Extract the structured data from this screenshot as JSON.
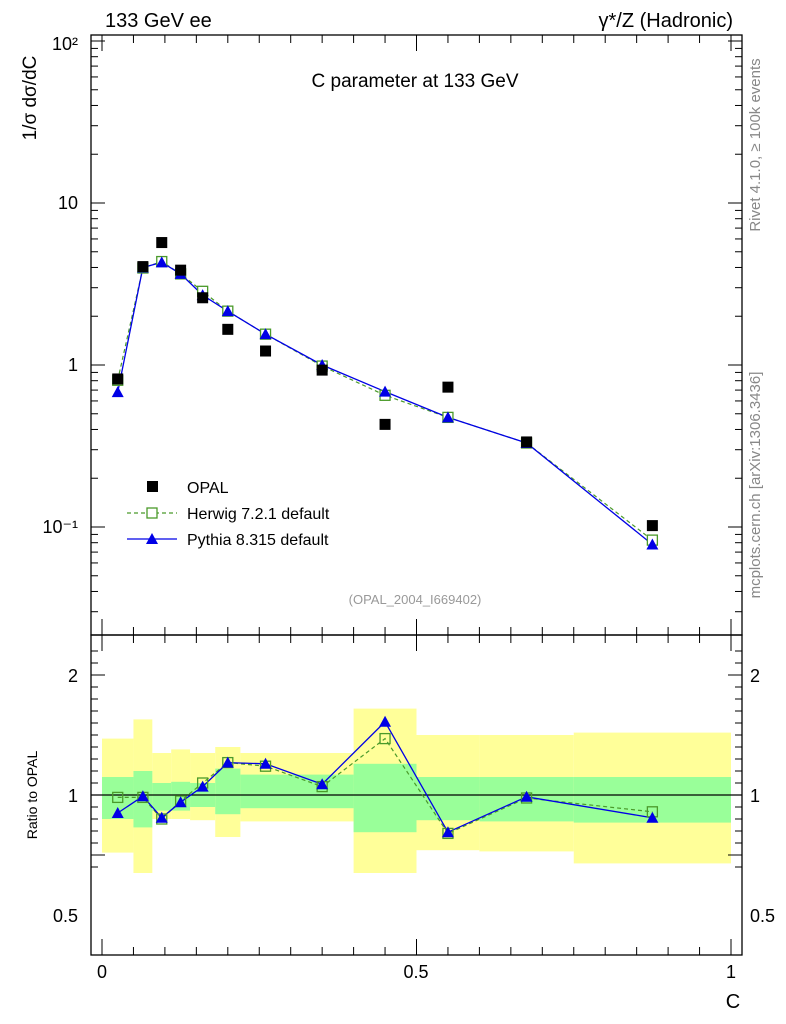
{
  "header": {
    "left": "133 GeV ee",
    "right": "γ*/Z (Hadronic)"
  },
  "side_labels": {
    "version": "Rivet 4.1.0, ≥ 100k events",
    "source": "mcplots.cern.ch [arXiv:1306.3436]"
  },
  "chart_data": [
    {
      "type": "scatter",
      "panel": "main",
      "title": "C parameter at 133 GeV",
      "analysis_tag": "(OPAL_2004_I669402)",
      "ylabel": "1/σ  dσ/dC",
      "yscale": "log",
      "xlim": [
        -0.05,
        1.0
      ],
      "ylim": [
        0.025,
        120
      ],
      "y_tick_labels": [
        "10²",
        "10",
        "1",
        "10⁻¹"
      ],
      "legend_position": "bottom-left",
      "legend_labels": {
        "data": "OPAL",
        "herwig": "Herwig 7.2.1 default",
        "pythia": "Pythia 8.315 default"
      },
      "series": [
        {
          "name": "OPAL",
          "style": "black-square-markers",
          "color": "#000000",
          "x": [
            0.025,
            0.065,
            0.095,
            0.125,
            0.16,
            0.2,
            0.26,
            0.35,
            0.45,
            0.55,
            0.675,
            0.875
          ],
          "values": [
            0.82,
            4.05,
            5.7,
            3.85,
            2.6,
            1.66,
            1.22,
            0.93,
            0.43,
            0.73,
            0.335,
            0.102
          ]
        },
        {
          "name": "Herwig 7.2.1 default",
          "style": "green-dashed-open-squares",
          "color": "#4a9a2a",
          "x": [
            0.025,
            0.065,
            0.095,
            0.125,
            0.16,
            0.2,
            0.26,
            0.35,
            0.45,
            0.55,
            0.675,
            0.875
          ],
          "values": [
            0.805,
            3.97,
            4.35,
            3.65,
            2.85,
            2.15,
            1.55,
            0.985,
            0.65,
            0.475,
            0.33,
            0.083
          ]
        },
        {
          "name": "Pythia 8.315 default",
          "style": "blue-solid-filled-triangles",
          "color": "#0000e6",
          "x": [
            0.025,
            0.065,
            0.095,
            0.125,
            0.16,
            0.2,
            0.26,
            0.35,
            0.45,
            0.55,
            0.675,
            0.875
          ],
          "values": [
            0.68,
            4.0,
            4.3,
            3.65,
            2.7,
            2.15,
            1.55,
            1.0,
            0.685,
            0.475,
            0.33,
            0.078
          ]
        }
      ]
    },
    {
      "type": "line",
      "panel": "ratio",
      "ylabel": "Ratio to OPAL",
      "xlabel": "C",
      "xlim": [
        -0.05,
        1.0
      ],
      "ylim": [
        0.35,
        2.25
      ],
      "x_tick_labels": [
        "0",
        "0.5",
        "1"
      ],
      "y_tick_labels": [
        "2",
        "1",
        "0.5"
      ],
      "reference_line": 1.0,
      "colors": {
        "band_inner": "#99ff99",
        "band_outer": "#ffff99"
      },
      "bins": [
        {
          "lo": 0.0,
          "hi": 0.05,
          "stat_lo": 0.8,
          "stat_hi": 1.15,
          "tot_lo": 0.52,
          "tot_hi": 1.47
        },
        {
          "lo": 0.05,
          "hi": 0.08,
          "stat_lo": 0.73,
          "stat_hi": 1.2,
          "tot_lo": 0.35,
          "tot_hi": 1.63
        },
        {
          "lo": 0.08,
          "hi": 0.11,
          "stat_lo": 0.87,
          "stat_hi": 1.1,
          "tot_lo": 0.8,
          "tot_hi": 1.35
        },
        {
          "lo": 0.11,
          "hi": 0.14,
          "stat_lo": 0.87,
          "stat_hi": 1.11,
          "tot_lo": 0.8,
          "tot_hi": 1.38
        },
        {
          "lo": 0.14,
          "hi": 0.18,
          "stat_lo": 0.9,
          "stat_hi": 1.1,
          "tot_lo": 0.79,
          "tot_hi": 1.35
        },
        {
          "lo": 0.18,
          "hi": 0.22,
          "stat_lo": 0.84,
          "stat_hi": 1.22,
          "tot_lo": 0.65,
          "tot_hi": 1.4
        },
        {
          "lo": 0.22,
          "hi": 0.4,
          "stat_lo": 0.89,
          "stat_hi": 1.17,
          "tot_lo": 0.78,
          "tot_hi": 1.35
        },
        {
          "lo": 0.4,
          "hi": 0.5,
          "stat_lo": 0.69,
          "stat_hi": 1.26,
          "tot_lo": 0.35,
          "tot_hi": 1.72
        },
        {
          "lo": 0.5,
          "hi": 0.6,
          "stat_lo": 0.79,
          "stat_hi": 1.15,
          "tot_lo": 0.54,
          "tot_hi": 1.5
        },
        {
          "lo": 0.6,
          "hi": 0.75,
          "stat_lo": 0.78,
          "stat_hi": 1.15,
          "tot_lo": 0.53,
          "tot_hi": 1.5
        },
        {
          "lo": 0.75,
          "hi": 1.0,
          "stat_lo": 0.77,
          "stat_hi": 1.15,
          "tot_lo": 0.43,
          "tot_hi": 1.52
        }
      ],
      "series": [
        {
          "name": "Herwig 7.2.1 default",
          "color": "#4a9a2a",
          "x": [
            0.025,
            0.065,
            0.095,
            0.125,
            0.16,
            0.2,
            0.26,
            0.35,
            0.45,
            0.55,
            0.675,
            0.875
          ],
          "values": [
            0.98,
            0.98,
            0.8,
            0.95,
            1.1,
            1.27,
            1.24,
            1.07,
            1.47,
            0.68,
            0.975,
            0.86
          ]
        },
        {
          "name": "Pythia 8.315 default",
          "color": "#0000e6",
          "x": [
            0.025,
            0.065,
            0.095,
            0.125,
            0.16,
            0.2,
            0.26,
            0.35,
            0.45,
            0.55,
            0.675,
            0.875
          ],
          "values": [
            0.85,
            0.99,
            0.81,
            0.94,
            1.07,
            1.27,
            1.26,
            1.09,
            1.61,
            0.69,
            0.985,
            0.81
          ]
        }
      ]
    }
  ]
}
